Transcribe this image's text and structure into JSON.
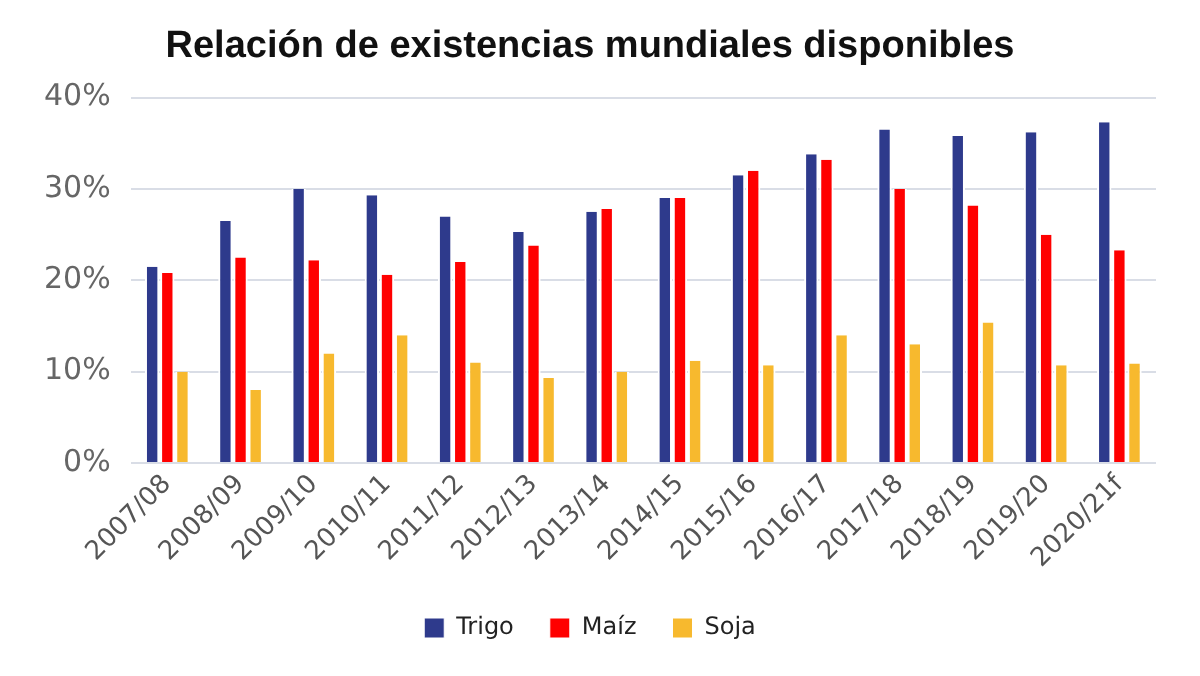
{
  "chart_data": {
    "type": "bar",
    "title": "Relación de existencias mundiales disponibles",
    "categories": [
      "2007/08",
      "2008/09",
      "2009/10",
      "2010/11",
      "2011/12",
      "2012/13",
      "2013/14",
      "2014/15",
      "2015/16",
      "2016/17",
      "2017/18",
      "2018/19",
      "2019/20",
      "2020/21f"
    ],
    "series": [
      {
        "name": "Trigo",
        "color": "#2e3a8c",
        "values": [
          21.5,
          26.5,
          30,
          29.3,
          27,
          25.3,
          27.5,
          29,
          31.5,
          33.8,
          36.5,
          35.8,
          36.2,
          37.3
        ]
      },
      {
        "name": "Maíz",
        "color": "#ff0000",
        "values": [
          20.8,
          22.5,
          22.2,
          20.6,
          22,
          23.8,
          27.8,
          29,
          32,
          33.2,
          30,
          28.2,
          25,
          23.3
        ]
      },
      {
        "name": "Soja",
        "color": "#f7b92e",
        "values": [
          10,
          8,
          12,
          14,
          11,
          9.3,
          10,
          11.2,
          10.7,
          14,
          13,
          15.4,
          10.7,
          10.9
        ]
      }
    ],
    "ylim": [
      0,
      40
    ],
    "yticks": [
      {
        "value": 0,
        "label": "0%"
      },
      {
        "value": 10,
        "label": "10%"
      },
      {
        "value": 20,
        "label": "20%"
      },
      {
        "value": 30,
        "label": "30%"
      },
      {
        "value": 40,
        "label": "40%"
      }
    ],
    "grid": "y",
    "legend": "bottom"
  }
}
